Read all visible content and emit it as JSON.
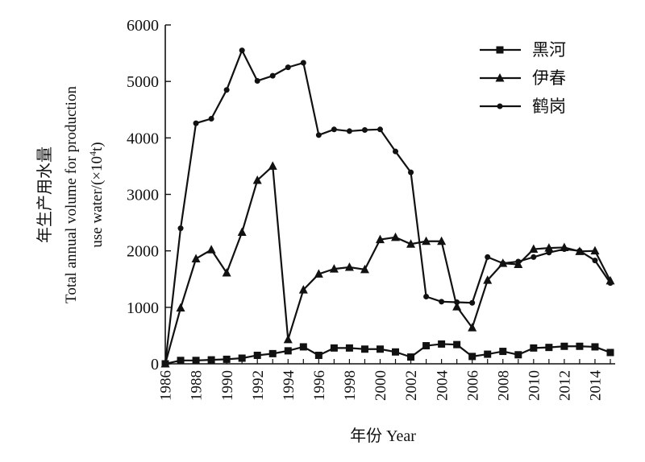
{
  "chart_data": {
    "type": "line",
    "xlabel": "年份 Year",
    "ylabel_cn": "年生产用水量",
    "ylabel_en_line1": "Total annual volume for production",
    "ylabel_en_line2": "use water/(×10",
    "ylabel_en_sup": "4",
    "ylabel_en_tail": "t)",
    "xlim": [
      1986,
      2015
    ],
    "ylim": [
      0,
      6000
    ],
    "x_ticks": [
      "1986",
      "1988",
      "1990",
      "1992",
      "1994",
      "1996",
      "1998",
      "2000",
      "2002",
      "2004",
      "2006",
      "2008",
      "2010",
      "2012",
      "2014"
    ],
    "y_ticks": [
      "0",
      "1000",
      "2000",
      "3000",
      "4000",
      "5000",
      "6000"
    ],
    "legend_position": "top-right",
    "x": [
      1986,
      1987,
      1988,
      1989,
      1990,
      1991,
      1992,
      1993,
      1994,
      1995,
      1996,
      1997,
      1998,
      1999,
      2000,
      2001,
      2002,
      2003,
      2004,
      2005,
      2006,
      2007,
      2008,
      2009,
      2010,
      2011,
      2012,
      2013,
      2014,
      2015
    ],
    "series": [
      {
        "name": "黑河",
        "marker": "square",
        "values": [
          0,
          60,
          60,
          70,
          80,
          100,
          150,
          180,
          230,
          300,
          150,
          280,
          280,
          260,
          260,
          210,
          120,
          320,
          350,
          340,
          130,
          170,
          220,
          160,
          280,
          290,
          310,
          310,
          300,
          200
        ]
      },
      {
        "name": "伊春",
        "marker": "triangle",
        "values": [
          0,
          990,
          1860,
          2020,
          1610,
          2330,
          3250,
          3500,
          430,
          1310,
          1590,
          1680,
          1710,
          1670,
          2200,
          2240,
          2120,
          2170,
          2170,
          1010,
          640,
          1480,
          1780,
          1760,
          2030,
          2050,
          2060,
          1990,
          2000,
          1470
        ]
      },
      {
        "name": "鹤岗",
        "marker": "circle",
        "values": [
          0,
          2400,
          4260,
          4340,
          4850,
          5550,
          5010,
          5100,
          5250,
          5330,
          4050,
          4150,
          4120,
          4140,
          4150,
          3760,
          3390,
          1190,
          1100,
          1090,
          1080,
          1890,
          1780,
          1810,
          1890,
          1970,
          2030,
          2000,
          1830,
          1430
        ]
      }
    ]
  }
}
